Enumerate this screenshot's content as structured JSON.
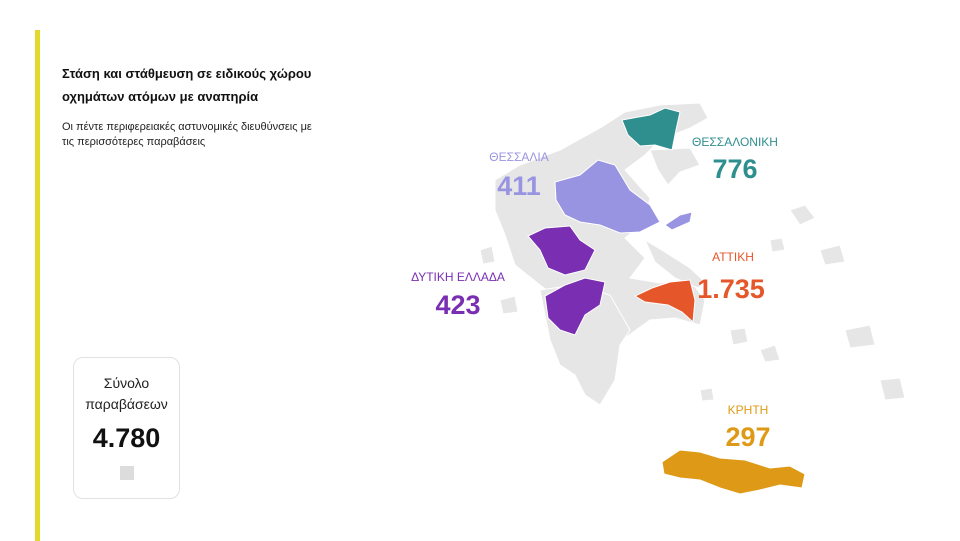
{
  "header": {
    "title": "Στάση και στάθμευση σε ειδικούς χώρου οχημάτων ατόμων με αναπηρία",
    "subtitle": "Οι πέντε περιφερειακές αστυνομικές διευθύνσεις με τις περισσότερες παραβάσεις"
  },
  "total": {
    "label": "Σύνολο παραβάσεων",
    "value": "4.780"
  },
  "regions": [
    {
      "name": "ΘΕΣΣΑΛΟΝΙΚΗ",
      "value": "776",
      "color": "#2f8f8f"
    },
    {
      "name": "ΘΕΣΣΑΛΙΑ",
      "value": "411",
      "color": "#9994e2"
    },
    {
      "name": "ΔΥΤΙΚΗ ΕΛΛΑΔΑ",
      "value": "423",
      "color": "#7a2fb3"
    },
    {
      "name": "ΑΤΤΙΚΗ",
      "value": "1.735",
      "color": "#e5572a"
    },
    {
      "name": "ΚΡΗΤΗ",
      "value": "297",
      "color": "#de9a16"
    }
  ]
}
